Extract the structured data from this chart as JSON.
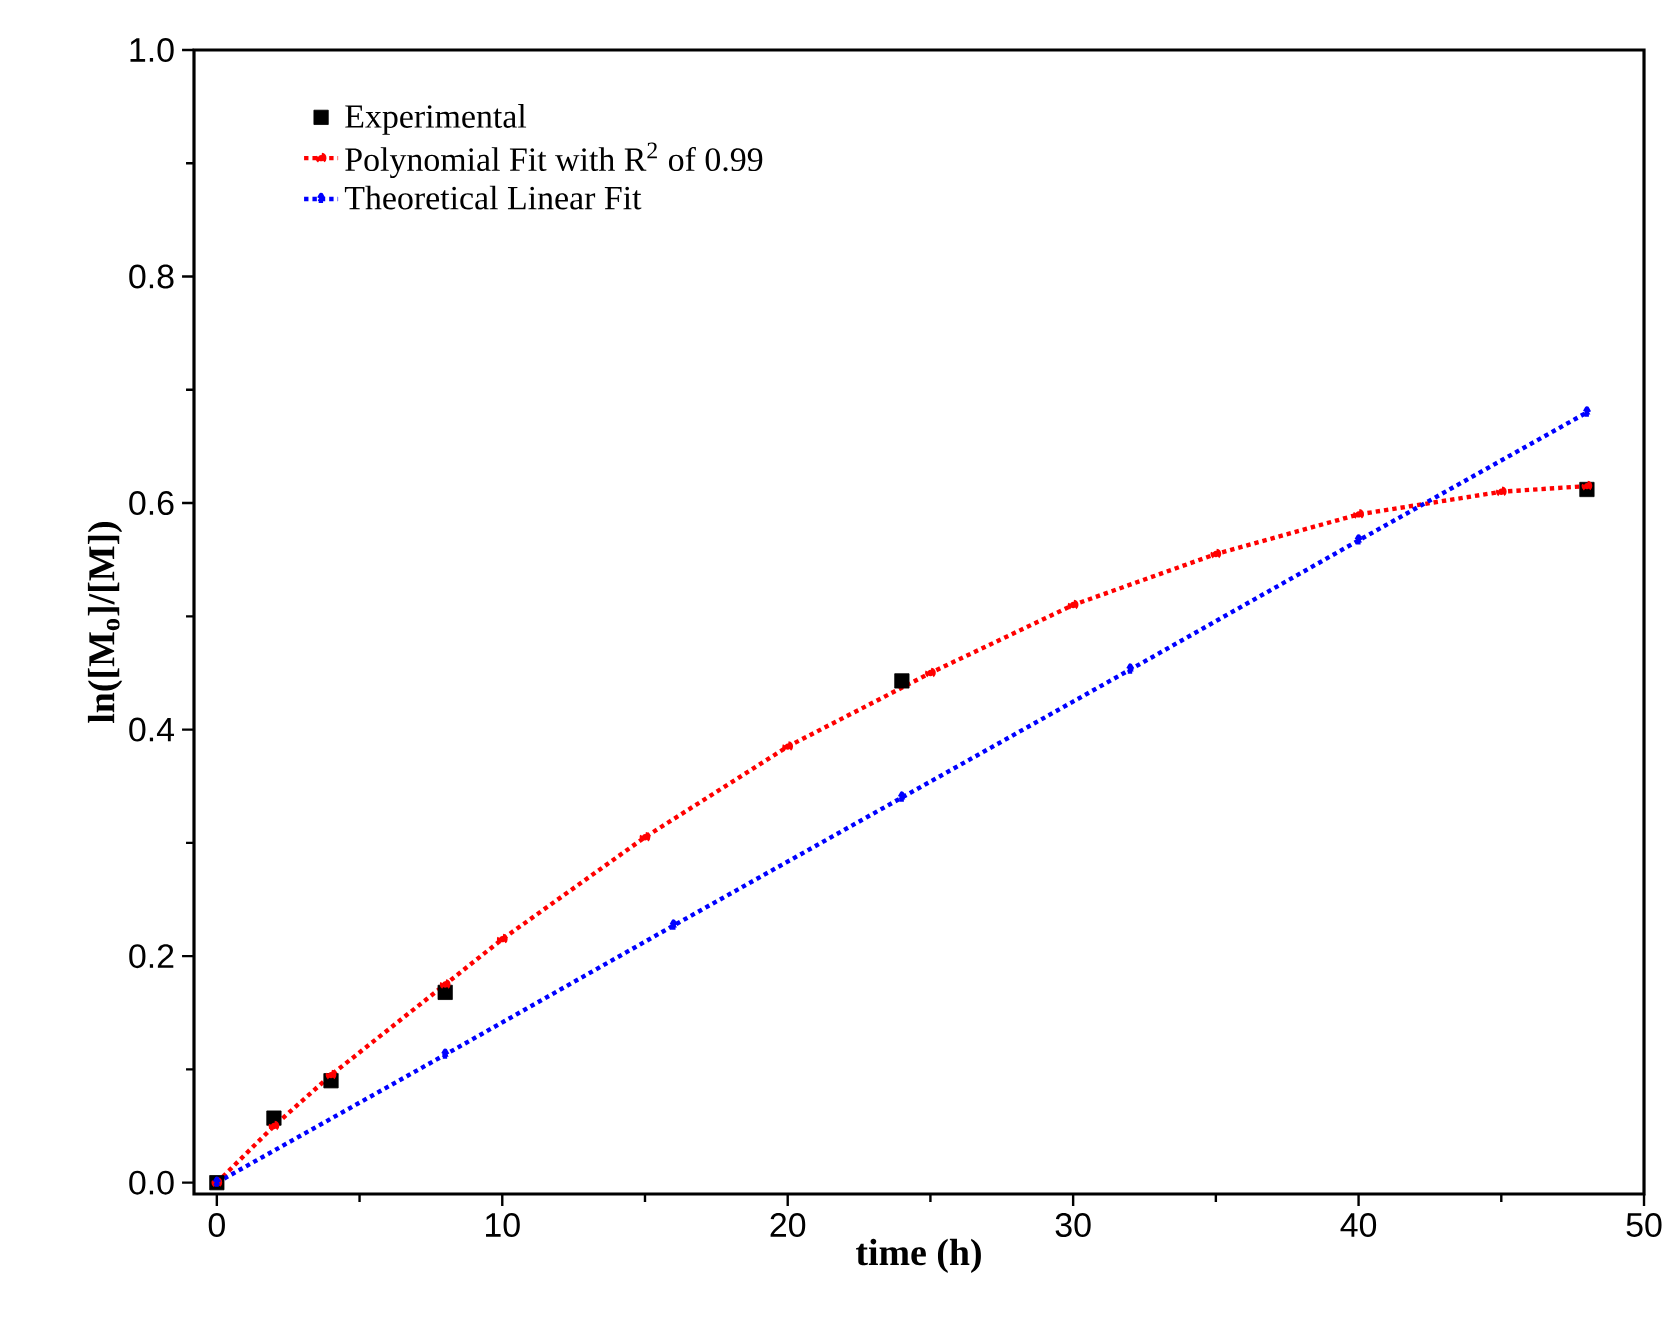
{
  "chart_data": {
    "type": "line",
    "xlabel": "time (h)",
    "ylabel": "ln([M$_{o}$]/[M])",
    "xlim": [
      -0.8,
      50
    ],
    "ylim": [
      -0.01,
      1.0
    ],
    "xticks": [
      0,
      10,
      20,
      30,
      40,
      50
    ],
    "yticks": [
      {
        "value": 0,
        "label": "0.0"
      },
      {
        "value": 0.2,
        "label": "0.2"
      },
      {
        "value": 0.4,
        "label": "0.4"
      },
      {
        "value": 0.6,
        "label": "0.6"
      },
      {
        "value": 0.8,
        "label": "0.8"
      },
      {
        "value": 1.0,
        "label": "1.0"
      }
    ],
    "grid": false,
    "legend": "top left",
    "series": [
      {
        "name": "Experimental",
        "type": "scatter",
        "marker": "square",
        "color": "#000000",
        "x": [
          0,
          2,
          4,
          8,
          24,
          48
        ],
        "values": [
          0,
          0.057,
          0.09,
          0.168,
          0.443,
          0.612
        ]
      },
      {
        "name": "Polynomial Fit with R$^{2}$ of 0.99",
        "marker": "circle",
        "line_style": "dotted",
        "color": "#ff0000",
        "x": [
          0,
          2,
          4,
          8,
          10,
          15,
          20,
          25,
          30,
          35,
          40,
          45,
          48
        ],
        "values": [
          0,
          0.05,
          0.095,
          0.175,
          0.215,
          0.305,
          0.385,
          0.45,
          0.51,
          0.555,
          0.59,
          0.61,
          0.615
        ]
      },
      {
        "name": "Theoretical Linear Fit",
        "marker": "triangle",
        "line_style": "dotted",
        "color": "#0000ff",
        "x": [
          0,
          8,
          16,
          24,
          32,
          40,
          48
        ],
        "values": [
          0,
          0.113,
          0.227,
          0.34,
          0.453,
          0.567,
          0.68
        ]
      }
    ]
  }
}
